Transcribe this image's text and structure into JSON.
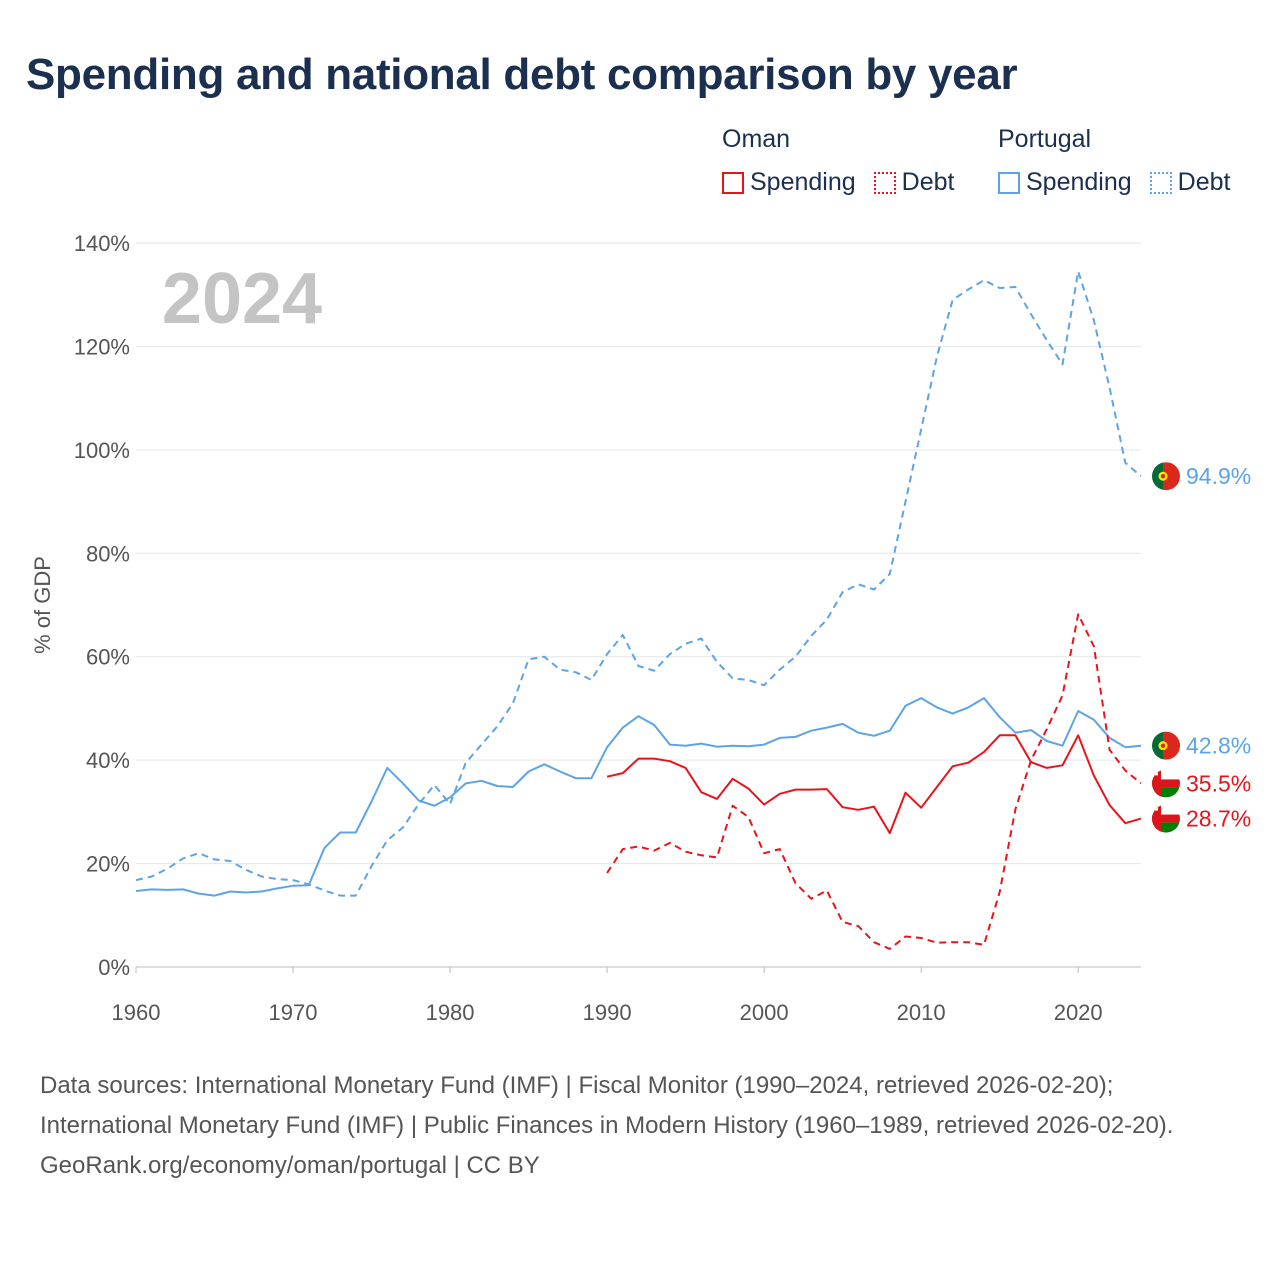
{
  "title": "Spending and national debt comparison by year",
  "legend": {
    "oman": {
      "country": "Oman",
      "spending": "Spending",
      "debt": "Debt",
      "color": "#e8141b"
    },
    "portugal": {
      "country": "Portugal",
      "spending": "Spending",
      "debt": "Debt",
      "color": "#5ca4e6"
    }
  },
  "chart_data": {
    "type": "line",
    "title": "Spending and national debt comparison by year",
    "ylabel": "% of GDP",
    "xlabel": "",
    "year_label": "2024",
    "xlim": [
      1960,
      2024
    ],
    "ylim": [
      0,
      140
    ],
    "x_ticks": [
      1960,
      1970,
      1980,
      1990,
      2000,
      2010,
      2020
    ],
    "y_ticks": [
      0,
      20,
      40,
      60,
      80,
      100,
      120,
      140
    ],
    "y_tick_labels": [
      "0%",
      "20%",
      "40%",
      "60%",
      "80%",
      "100%",
      "120%",
      "140%"
    ],
    "grid": true,
    "series": [
      {
        "name": "Portugal Debt",
        "country": "Portugal",
        "kind": "debt",
        "style": "dashed",
        "color": "#5ca4e6",
        "start_year": 1960,
        "values": [
          16.8,
          17.5,
          19.0,
          21.0,
          22.0,
          20.8,
          20.5,
          18.8,
          17.5,
          17.0,
          16.8,
          16.0,
          14.8,
          13.8,
          13.8,
          19.5,
          24.5,
          27.0,
          31.5,
          35.2,
          31.5,
          39.5,
          43.0,
          46.5,
          51.0,
          59.5,
          60.0,
          57.5,
          57.0,
          55.5,
          60.5,
          64.2,
          58.2,
          57.3,
          60.5,
          62.5,
          63.5,
          59.0,
          55.8,
          55.5,
          54.5,
          57.5,
          60.0,
          64.0,
          67.2,
          72.5,
          74.0,
          73.0,
          76.0,
          90.0,
          104.0,
          118.0,
          129.0,
          131.0,
          132.8,
          131.3,
          131.5,
          126.2,
          121.2,
          116.5,
          134.5,
          125.0,
          112.0,
          97.5,
          94.9
        ]
      },
      {
        "name": "Portugal Spending",
        "country": "Portugal",
        "kind": "spending",
        "style": "solid",
        "color": "#5ca4e6",
        "start_year": 1960,
        "values": [
          14.7,
          15.0,
          14.9,
          15.0,
          14.2,
          13.8,
          14.6,
          14.4,
          14.6,
          15.2,
          15.7,
          15.8,
          23.0,
          26.0,
          26.0,
          32.0,
          38.5,
          35.5,
          32.2,
          31.2,
          32.8,
          35.5,
          36.0,
          35.0,
          34.8,
          37.8,
          39.2,
          37.8,
          36.5,
          36.5,
          42.5,
          46.3,
          48.5,
          46.8,
          43.0,
          42.8,
          43.2,
          42.6,
          42.8,
          42.7,
          43.0,
          44.3,
          44.5,
          45.7,
          46.3,
          47.0,
          45.3,
          44.7,
          45.7,
          50.5,
          52.0,
          50.2,
          49.0,
          50.2,
          52.0,
          48.3,
          45.3,
          45.8,
          43.7,
          42.8,
          49.5,
          47.8,
          44.3,
          42.5,
          42.8
        ]
      },
      {
        "name": "Oman Debt",
        "country": "Oman",
        "kind": "debt",
        "style": "dashed",
        "color": "#e8141b",
        "start_year": 1990,
        "values": [
          18.2,
          22.8,
          23.3,
          22.5,
          24.0,
          22.3,
          21.6,
          21.2,
          31.2,
          29.0,
          22.0,
          22.8,
          16.2,
          13.2,
          14.8,
          8.7,
          7.9,
          4.8,
          3.5,
          5.9,
          5.6,
          4.7,
          4.8,
          4.8,
          4.3,
          14.5,
          30.5,
          40.0,
          46.0,
          52.5,
          68.2,
          62.0,
          42.0,
          38.0,
          35.5
        ]
      },
      {
        "name": "Oman Spending",
        "country": "Oman",
        "kind": "spending",
        "style": "solid",
        "color": "#e8141b",
        "start_year": 1990,
        "values": [
          36.8,
          37.5,
          40.3,
          40.3,
          39.8,
          38.5,
          33.8,
          32.5,
          36.4,
          34.5,
          31.4,
          33.5,
          34.3,
          34.3,
          34.4,
          30.9,
          30.4,
          31.0,
          25.9,
          33.7,
          30.8,
          34.8,
          38.8,
          39.5,
          41.6,
          44.8,
          44.8,
          39.6,
          38.5,
          39.0,
          44.8,
          37.0,
          31.3,
          27.8,
          28.7
        ]
      }
    ],
    "end_labels": [
      {
        "series": "Portugal Debt",
        "value": 94.9,
        "label": "94.9%",
        "flag": "portugal"
      },
      {
        "series": "Portugal Spending",
        "value": 42.8,
        "label": "42.8%",
        "flag": "portugal"
      },
      {
        "series": "Oman Debt",
        "value": 35.5,
        "label": "35.5%",
        "flag": "oman"
      },
      {
        "series": "Oman Spending",
        "value": 28.7,
        "label": "28.7%",
        "flag": "oman"
      }
    ]
  },
  "footer": {
    "sources": "Data sources: International Monetary Fund (IMF) | Fiscal Monitor (1990–2024, retrieved 2026-02-20); International Monetary Fund (IMF) | Public Finances in Modern History (1960–1989, retrieved 2026-02-20).",
    "credit": "GeoRank.org/economy/oman/portugal | CC BY"
  }
}
